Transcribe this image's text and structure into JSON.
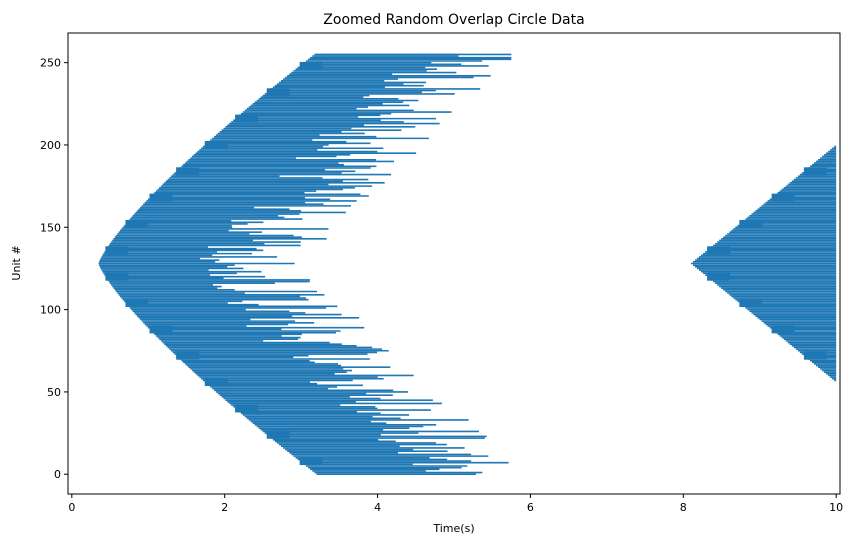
{
  "chart_data": {
    "type": "raster",
    "title": "Zoomed Random Overlap Circle Data",
    "xlabel": "Time(s)",
    "ylabel": "Unit #",
    "xlim": [
      -0.05,
      10.05
    ],
    "ylim": [
      -12,
      268
    ],
    "xticks": [
      0,
      2,
      4,
      6,
      8,
      10
    ],
    "yticks": [
      0,
      50,
      100,
      150,
      200,
      250
    ],
    "grid": false,
    "series": [
      {
        "color": "#1f77b4",
        "left_arc": {
          "center_unit": 128,
          "radius_units": 128,
          "spread_units": 110,
          "min_time": 0.35,
          "max_time": 4.95,
          "start_time_width": 1.2
        },
        "right_arc": {
          "center_unit": 128,
          "min_time": 8.1,
          "max_time": 10.0,
          "unit_span": [
            56,
            200
          ]
        }
      }
    ]
  }
}
